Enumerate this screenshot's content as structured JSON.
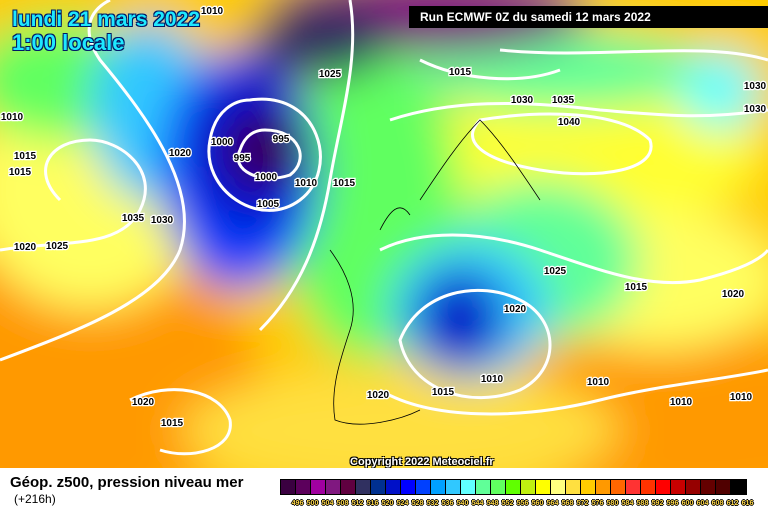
{
  "header": {
    "date": "lundi 21 mars 2022",
    "time": "1:00 locale",
    "run": "Run ECMWF 0Z du samedi 12 mars 2022"
  },
  "copyright": "Copyright 2022 Meteociel.fr",
  "footer": {
    "title": "Géop. z500, pression niveau mer",
    "lead": "(+216h)"
  },
  "legend": {
    "colors": [
      "#3a0040",
      "#5c005c",
      "#a000a0",
      "#801880",
      "#600040",
      "#303060",
      "#003090",
      "#0010c8",
      "#0000ff",
      "#0040ff",
      "#00a0ff",
      "#30c8ff",
      "#60ffff",
      "#60ff98",
      "#60ff60",
      "#60ff00",
      "#c0f010",
      "#ffff00",
      "#ffff80",
      "#ffe040",
      "#ffcc00",
      "#ff9900",
      "#ff6600",
      "#ff3333",
      "#ff3300",
      "#ff0000",
      "#c80000",
      "#960000",
      "#640000",
      "#500000",
      "#000000"
    ],
    "labels": [
      "496",
      "500",
      "504",
      "508",
      "512",
      "516",
      "520",
      "524",
      "528",
      "532",
      "536",
      "540",
      "544",
      "548",
      "552",
      "556",
      "560",
      "564",
      "568",
      "572",
      "576",
      "580",
      "584",
      "588",
      "592",
      "596",
      "600",
      "604",
      "608",
      "612",
      "616"
    ]
  },
  "isobar_labels": [
    "1010",
    "1025",
    "1015",
    "1030",
    "1035",
    "1040",
    "1030",
    "1030",
    "1020",
    "1000",
    "995",
    "995",
    "1000",
    "1010",
    "1015",
    "1005",
    "1015",
    "1015",
    "1010",
    "1035",
    "1030",
    "1020",
    "1025",
    "1025",
    "1015",
    "1020",
    "1020",
    "1010",
    "1010",
    "1015",
    "1020",
    "1010",
    "1010",
    "1020",
    "1015"
  ]
}
